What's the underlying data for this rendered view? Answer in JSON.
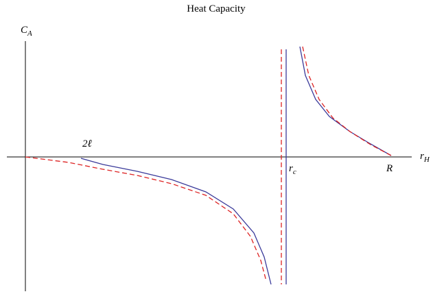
{
  "chart_data": {
    "type": "line",
    "title": "Heat Capacity",
    "y_label": {
      "main": "C",
      "sub": "A"
    },
    "x_label": {
      "main": "r",
      "sub": "H"
    },
    "annotations": [
      "2ℓ",
      {
        "main": "r",
        "sub": "c"
      },
      "R"
    ],
    "xlim": [
      -2.7,
      56.3
    ],
    "ylim": [
      -18.6,
      15.7
    ],
    "series": [
      {
        "color": "#3a3a9a",
        "dashed": false,
        "x": [
          8.1,
          11.3,
          16.3,
          21.3,
          26.3,
          30.3,
          33.3,
          34.8,
          35.8,
          null,
          40.0,
          40.8,
          42.3,
          44.3,
          47.3,
          50.3,
          53.3
        ],
        "values": [
          -0.2,
          -1.1,
          -2.1,
          -3.3,
          -5.1,
          -7.6,
          -11.1,
          -14.6,
          -18.6,
          null,
          16.1,
          11.9,
          8.4,
          5.9,
          3.7,
          1.9,
          0.2
        ]
      },
      {
        "color": "#dd2222",
        "dashed": true,
        "x": [
          0,
          6.3,
          11.3,
          16.3,
          21.3,
          26.3,
          30.3,
          32.8,
          34.3,
          35.1,
          null,
          40.4,
          41.3,
          42.8,
          44.8,
          47.3,
          50.3,
          53.5
        ],
        "values": [
          0,
          -0.8,
          -1.8,
          -2.7,
          -3.9,
          -5.6,
          -8.3,
          -11.6,
          -15.1,
          -18.1,
          null,
          16.1,
          11.9,
          8.4,
          5.7,
          3.7,
          1.8,
          0.1
        ]
      }
    ],
    "vlines": [
      {
        "x": 38.0,
        "color": "#3a3a9a",
        "dashed": false
      },
      {
        "x": 37.3,
        "color": "#dd2222",
        "dashed": true
      }
    ]
  }
}
